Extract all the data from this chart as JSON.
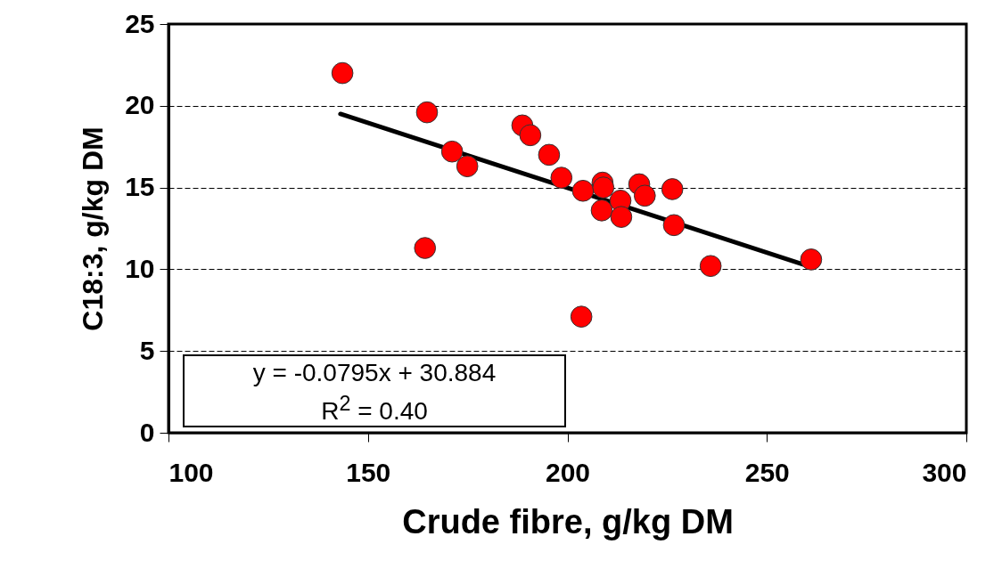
{
  "chart_data": {
    "type": "scatter",
    "xlabel": "Crude fibre, g/kg DM",
    "ylabel": "C18:3, g/kg DM",
    "xlim": [
      100,
      300
    ],
    "xticks": [
      100,
      150,
      200,
      250,
      300
    ],
    "ylim": [
      0,
      25
    ],
    "yticks": [
      0,
      5,
      10,
      15,
      20,
      25
    ],
    "grid": "y",
    "marker": "circle",
    "annotations": [
      "y = -0.0795x + 30.884",
      "R$^{2}$ = 0.40"
    ],
    "series": [
      {
        "color": "#ff0000",
        "x": [
          143.6,
          164.8,
          164.3,
          171.1,
          174.9,
          188.7,
          190.7,
          195.4,
          198.5,
          203.9,
          208.8,
          209.0,
          208.6,
          213.3,
          213.5,
          218.0,
          219.4,
          226.3,
          226.7,
          203.5,
          235.9,
          261.1
        ],
        "values": [
          22.0,
          19.6,
          11.3,
          17.2,
          16.3,
          18.8,
          18.2,
          17.0,
          15.6,
          14.8,
          15.3,
          15.0,
          13.6,
          14.2,
          13.2,
          15.2,
          14.5,
          14.9,
          12.7,
          7.1,
          10.2,
          10.6
        ]
      },
      {
        "type": "line",
        "color": "#000000",
        "marker": "none",
        "x": [
          143.1,
          261.6
        ],
        "values": [
          19.5,
          10.1
        ]
      }
    ]
  }
}
